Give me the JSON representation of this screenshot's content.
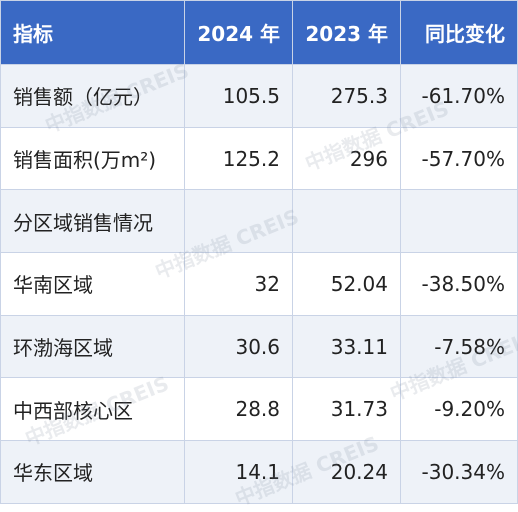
{
  "header": {
    "col1": "指标",
    "col2": "2024 年",
    "col3": "2023 年",
    "col4": "同比变化"
  },
  "rows": [
    {
      "label": "销售额（亿元）",
      "y2024": "105.5",
      "y2023": "275.3",
      "change": "-61.70%"
    },
    {
      "label": "销售面积(万m²)",
      "y2024": "125.2",
      "y2023": "296",
      "change": "-57.70%"
    },
    {
      "label": "分区域销售情况",
      "y2024": "",
      "y2023": "",
      "change": ""
    },
    {
      "label": "华南区域",
      "y2024": "32",
      "y2023": "52.04",
      "change": "-38.50%"
    },
    {
      "label": "环渤海区域",
      "y2024": "30.6",
      "y2023": "33.11",
      "change": "-7.58%"
    },
    {
      "label": "中西部核心区",
      "y2024": "28.8",
      "y2023": "31.73",
      "change": "-9.20%"
    },
    {
      "label": "华东区域",
      "y2024": "14.1",
      "y2023": "20.24",
      "change": "-30.34%"
    }
  ],
  "watermark": "中指数据 CREIS",
  "colors": {
    "header_bg": "#3a69c4",
    "alt_row_bg": "#eef2f8",
    "border": "#c9d3e6"
  }
}
